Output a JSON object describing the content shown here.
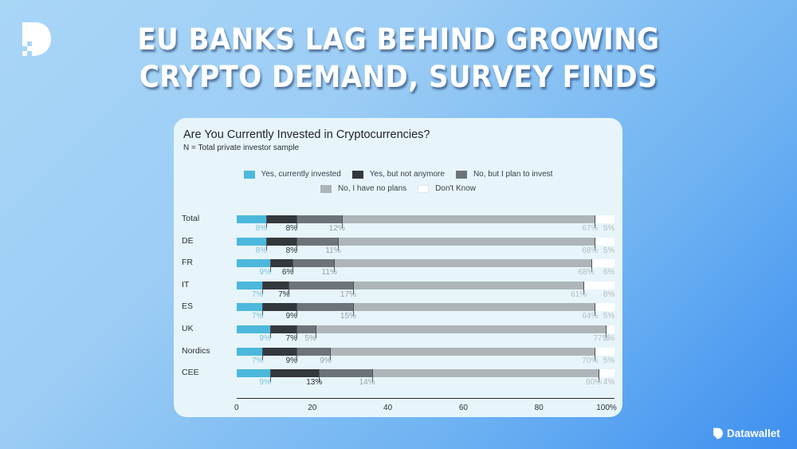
{
  "headline": {
    "line1": "EU BANKS LAG BEHIND GROWING",
    "line2": "CRYPTO DEMAND, SURVEY FINDS"
  },
  "brand": {
    "name": "Datawallet",
    "logo_icon": "datawallet-d-logo-icon"
  },
  "chart_data": {
    "type": "bar",
    "orientation": "horizontal-stacked-100",
    "title": "Are You Currently Invested in Cryptocurrencies?",
    "subtitle": "N = Total private investor sample",
    "xlabel": "",
    "ylabel": "",
    "xlim": [
      0,
      100
    ],
    "x_ticks": [
      "0",
      "20",
      "40",
      "60",
      "80",
      "100%"
    ],
    "legend_position": "top",
    "categories": [
      "Total",
      "DE",
      "FR",
      "IT",
      "ES",
      "UK",
      "Nordics",
      "CEE"
    ],
    "series": [
      {
        "name": "Yes, currently invested",
        "color": "#4cb8dc",
        "label_color": "#7cc3dc",
        "values": [
          8,
          8,
          9,
          7,
          7,
          9,
          7,
          9
        ]
      },
      {
        "name": "Yes, but not anymore",
        "color": "#33383d",
        "label_color": "#2b2f33",
        "values": [
          8,
          8,
          6,
          7,
          9,
          7,
          9,
          13
        ]
      },
      {
        "name": "No, but I plan to invest",
        "color": "#6d7479",
        "label_color": "#9aa1a6",
        "values": [
          12,
          11,
          11,
          17,
          15,
          5,
          9,
          14
        ]
      },
      {
        "name": "No, I have no plans",
        "color": "#adb5b8",
        "label_color": "#b4bcc0",
        "values": [
          67,
          68,
          68,
          61,
          64,
          77,
          70,
          60
        ]
      },
      {
        "name": "Don't Know",
        "color": "#ffffff",
        "label_color": "#b4bcc0",
        "values": [
          5,
          5,
          6,
          8,
          5,
          2,
          5,
          4
        ]
      }
    ]
  }
}
